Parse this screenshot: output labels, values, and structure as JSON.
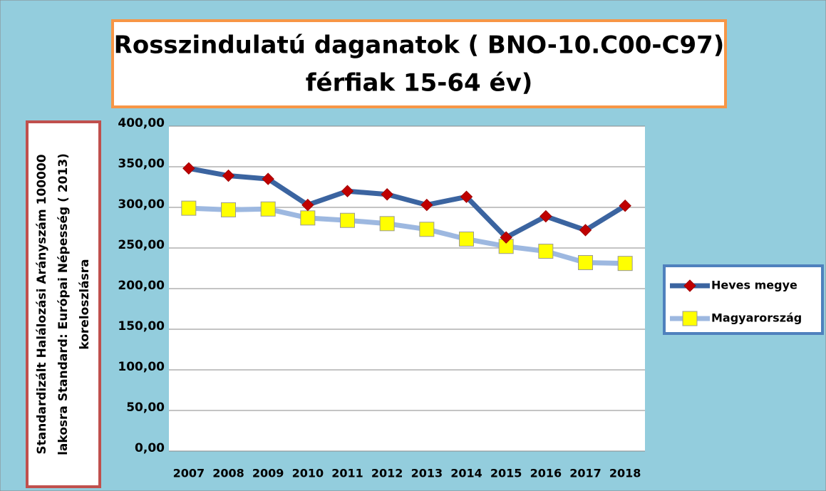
{
  "chart_data": {
    "type": "line",
    "title": [
      "Rosszindulatú daganatok ( BNO-10.C00-C97)",
      "férfiak 15-64 év)"
    ],
    "ylabel": [
      "Standardizált Halálozási Arányszám 100000",
      "lakosra Standard: Európai Népesség ( 2013)",
      "koreloszlásra"
    ],
    "categories": [
      "2007",
      "2008",
      "2009",
      "2010",
      "2011",
      "2012",
      "2013",
      "2014",
      "2015",
      "2016",
      "2017",
      "2018"
    ],
    "series": [
      {
        "name": "Heves megye",
        "color": "#3b64a0",
        "marker_color": "#c00000",
        "marker": "diamond",
        "values": [
          348,
          339,
          335,
          303,
          320,
          316,
          303,
          313,
          263,
          289,
          272,
          302
        ]
      },
      {
        "name": "Magyarország",
        "color": "#9db8e0",
        "marker_color": "#ffff00",
        "marker": "square",
        "values": [
          299,
          297,
          298,
          287,
          284,
          280,
          273,
          261,
          252,
          246,
          232,
          231
        ]
      }
    ],
    "ylim": [
      0,
      400
    ],
    "yticks": [
      {
        "value": 0,
        "label": "0,00"
      },
      {
        "value": 50,
        "label": "50,00"
      },
      {
        "value": 100,
        "label": "100,00"
      },
      {
        "value": 150,
        "label": "150,00"
      },
      {
        "value": 200,
        "label": "200,00"
      },
      {
        "value": 250,
        "label": "250,00"
      },
      {
        "value": 300,
        "label": "300,00"
      },
      {
        "value": 350,
        "label": "350,00"
      },
      {
        "value": 400,
        "label": "400,00"
      }
    ],
    "grid": true,
    "legend": "right"
  }
}
